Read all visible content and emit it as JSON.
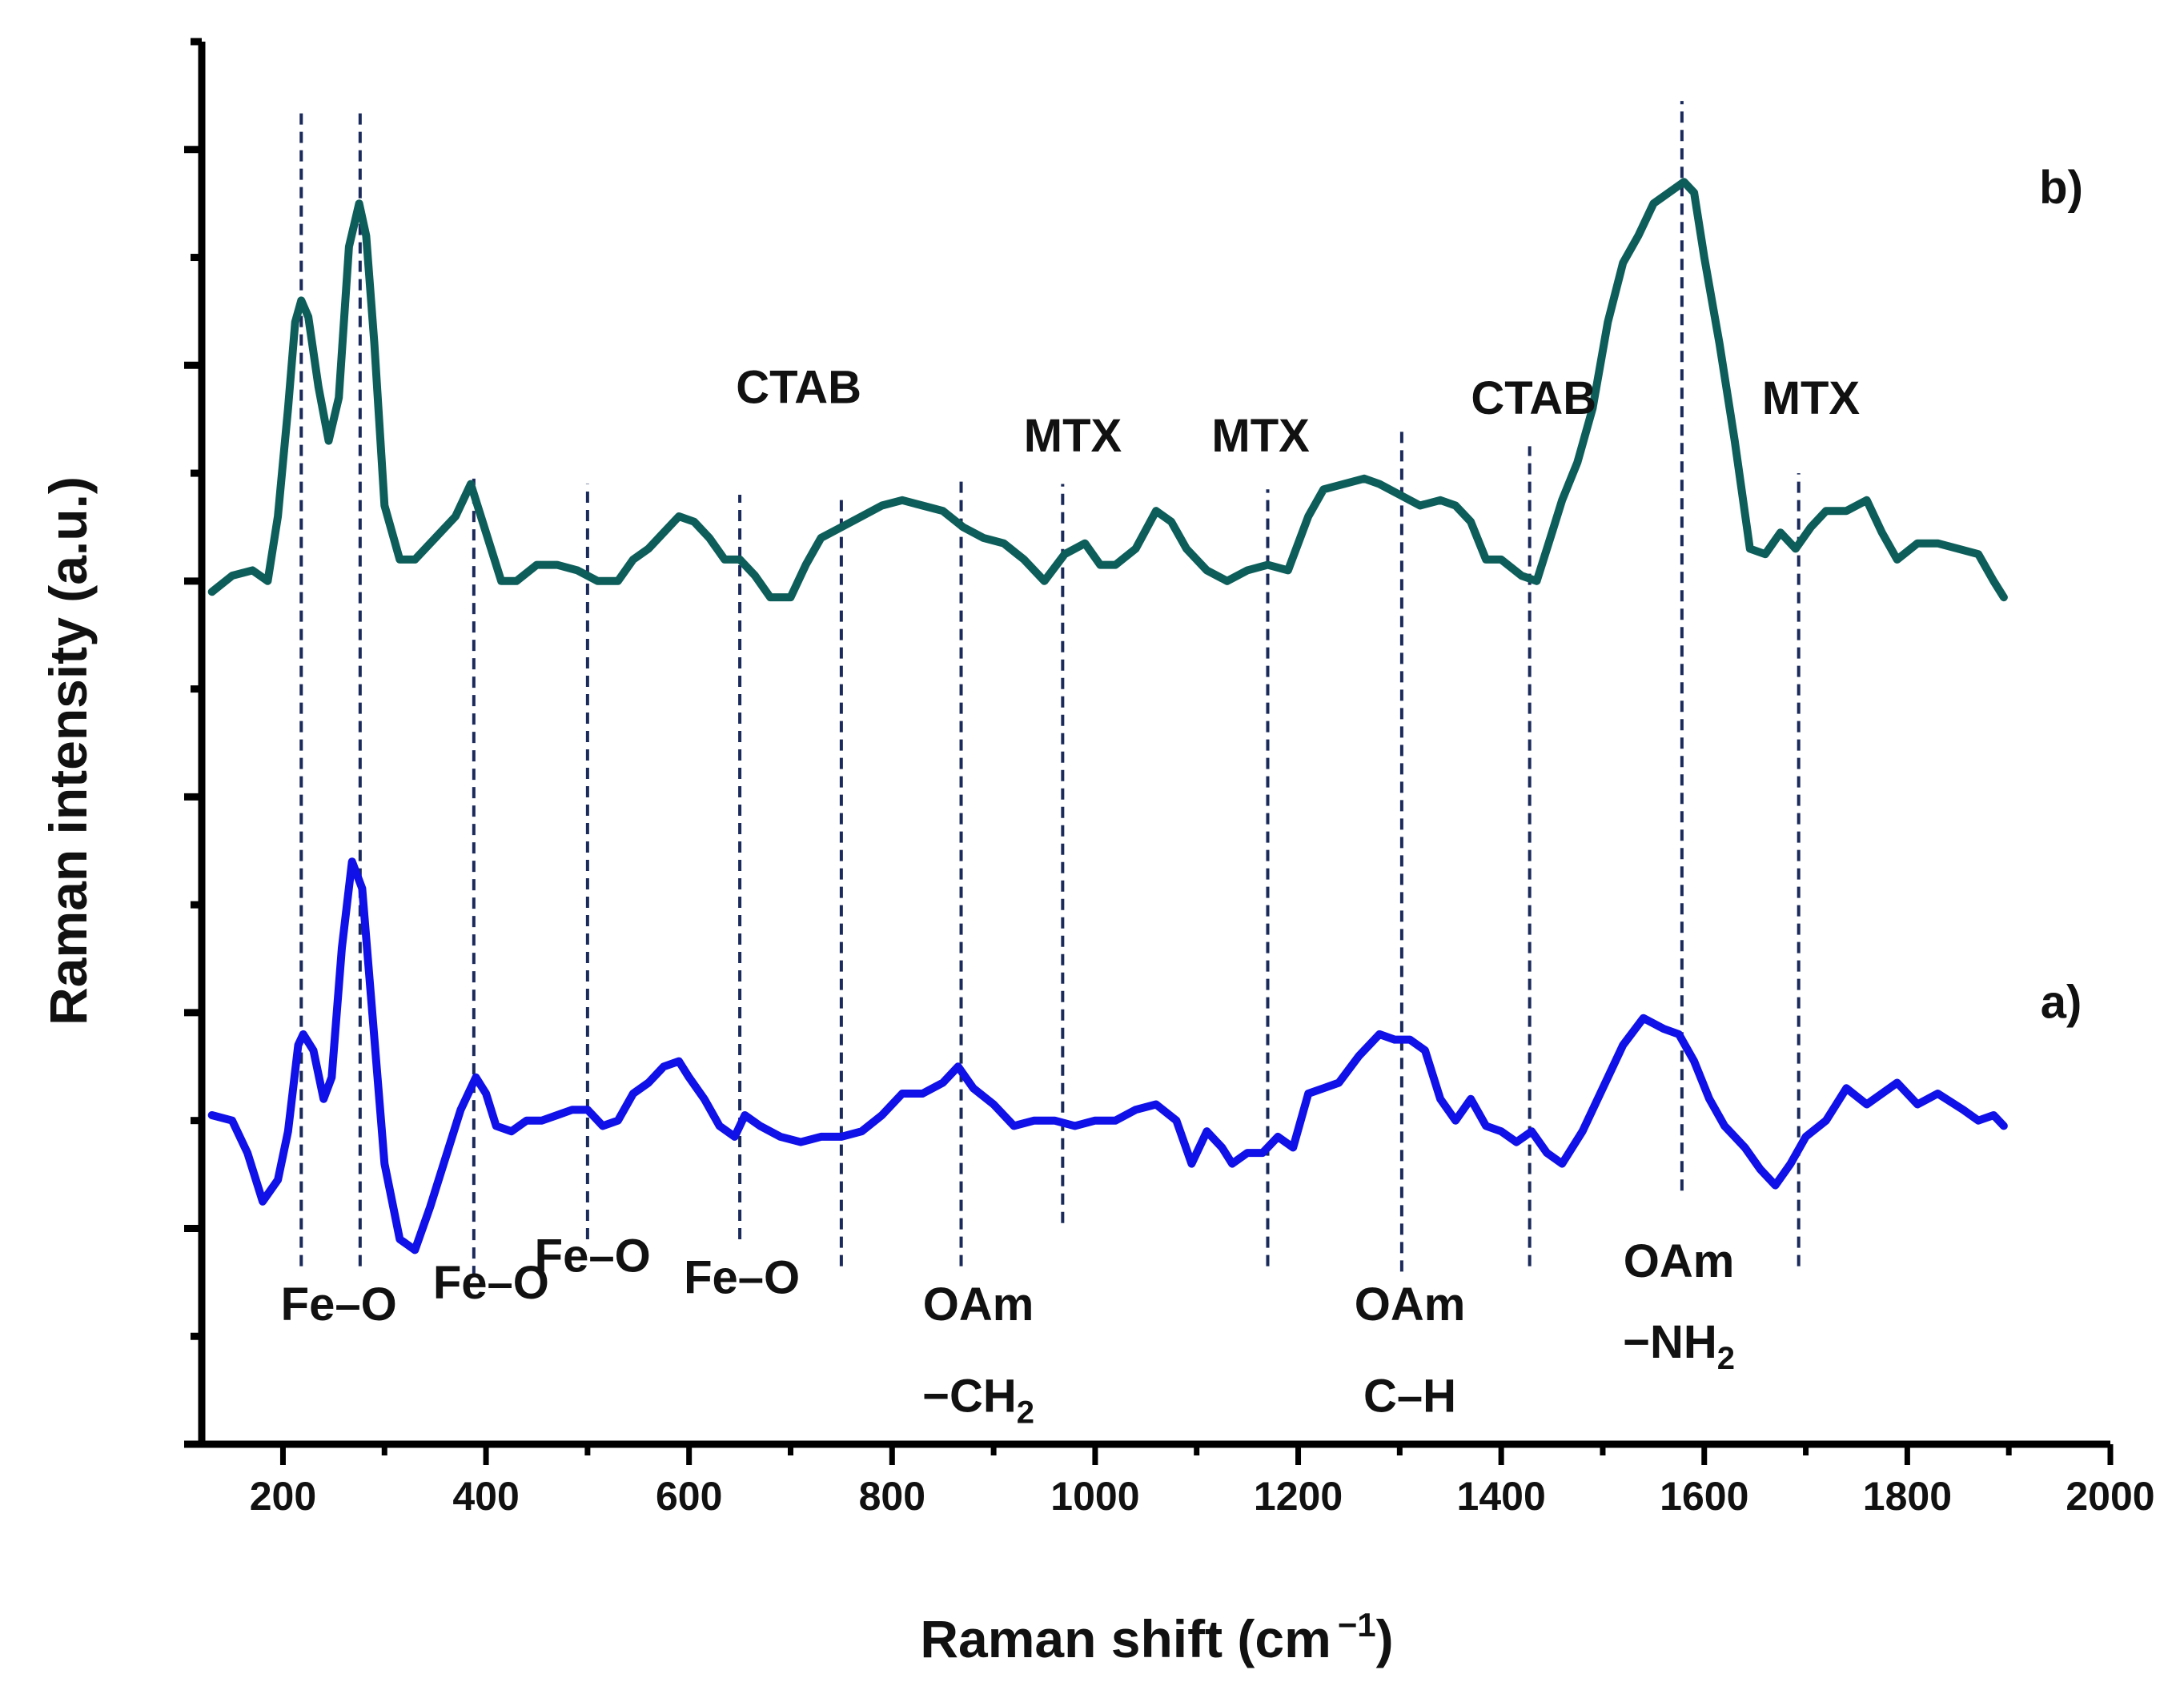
{
  "chart_data": {
    "type": "line",
    "title": "",
    "xlabel": "Raman shift (cm",
    "xlabel_sup": "−1",
    "xlabel_close": ")",
    "ylabel": "Raman intensity (a.u.)",
    "xlim": [
      120,
      2000
    ],
    "ylim": [
      0,
      13
    ],
    "x_ticks": [
      200,
      400,
      600,
      800,
      1000,
      1200,
      1400,
      1600,
      1800,
      2000
    ],
    "y_ticks_count": 13,
    "grid": false,
    "series": [
      {
        "name": "a)",
        "color": "#1010e8",
        "x": [
          130,
          150,
          165,
          180,
          195,
          205,
          215,
          220,
          230,
          240,
          248,
          258,
          268,
          278,
          288,
          300,
          315,
          330,
          345,
          360,
          375,
          390,
          400,
          410,
          425,
          440,
          455,
          470,
          485,
          500,
          515,
          530,
          545,
          560,
          575,
          590,
          600,
          615,
          630,
          645,
          655,
          670,
          690,
          710,
          730,
          750,
          770,
          790,
          810,
          830,
          850,
          865,
          880,
          900,
          920,
          940,
          960,
          980,
          1000,
          1020,
          1040,
          1060,
          1080,
          1095,
          1110,
          1125,
          1135,
          1150,
          1165,
          1180,
          1195,
          1210,
          1225,
          1240,
          1260,
          1280,
          1295,
          1310,
          1325,
          1340,
          1355,
          1370,
          1385,
          1400,
          1415,
          1430,
          1445,
          1460,
          1480,
          1500,
          1520,
          1540,
          1560,
          1575,
          1590,
          1605,
          1620,
          1640,
          1655,
          1670,
          1685,
          1700,
          1720,
          1740,
          1760,
          1790,
          1810,
          1830,
          1855,
          1870,
          1885,
          1895
        ],
        "y": [
          3.05,
          3.0,
          2.7,
          2.25,
          2.45,
          2.9,
          3.7,
          3.8,
          3.65,
          3.2,
          3.4,
          4.6,
          5.4,
          5.15,
          4.0,
          2.6,
          1.9,
          1.8,
          2.2,
          2.65,
          3.1,
          3.4,
          3.25,
          2.95,
          2.9,
          3.0,
          3.0,
          3.05,
          3.1,
          3.1,
          2.95,
          3.0,
          3.25,
          3.35,
          3.5,
          3.55,
          3.4,
          3.2,
          2.95,
          2.85,
          3.05,
          2.95,
          2.85,
          2.8,
          2.85,
          2.85,
          2.9,
          3.05,
          3.25,
          3.25,
          3.35,
          3.5,
          3.3,
          3.15,
          2.95,
          3.0,
          3.0,
          2.95,
          3.0,
          3.0,
          3.1,
          3.15,
          3.0,
          2.6,
          2.9,
          2.75,
          2.6,
          2.7,
          2.7,
          2.85,
          2.75,
          3.25,
          3.3,
          3.35,
          3.6,
          3.8,
          3.75,
          3.75,
          3.65,
          3.2,
          3.0,
          3.2,
          2.95,
          2.9,
          2.8,
          2.9,
          2.7,
          2.6,
          2.9,
          3.3,
          3.7,
          3.95,
          3.85,
          3.8,
          3.55,
          3.2,
          2.95,
          2.75,
          2.55,
          2.4,
          2.6,
          2.85,
          3.0,
          3.3,
          3.15,
          3.35,
          3.15,
          3.25,
          3.1,
          3.0,
          3.05,
          2.95
        ],
        "labels": []
      },
      {
        "name": "b)",
        "color": "#0d5e5a",
        "x": [
          130,
          150,
          170,
          185,
          195,
          205,
          212,
          218,
          225,
          235,
          245,
          255,
          265,
          275,
          282,
          290,
          300,
          315,
          330,
          350,
          370,
          385,
          395,
          405,
          415,
          430,
          450,
          470,
          490,
          510,
          530,
          545,
          560,
          575,
          590,
          605,
          620,
          635,
          650,
          665,
          680,
          700,
          715,
          730,
          750,
          770,
          790,
          810,
          830,
          850,
          870,
          890,
          910,
          930,
          950,
          970,
          990,
          1005,
          1020,
          1040,
          1060,
          1075,
          1090,
          1110,
          1130,
          1150,
          1170,
          1190,
          1210,
          1225,
          1245,
          1265,
          1280,
          1300,
          1320,
          1340,
          1355,
          1370,
          1385,
          1400,
          1420,
          1435,
          1450,
          1460,
          1475,
          1490,
          1505,
          1520,
          1535,
          1550,
          1565,
          1580,
          1590,
          1600,
          1615,
          1630,
          1645,
          1660,
          1675,
          1690,
          1705,
          1720,
          1740,
          1760,
          1775,
          1790,
          1810,
          1830,
          1850,
          1870,
          1885,
          1895
        ],
        "y": [
          7.9,
          8.05,
          8.1,
          8.0,
          8.6,
          9.6,
          10.4,
          10.6,
          10.45,
          9.8,
          9.3,
          9.7,
          11.1,
          11.5,
          11.2,
          10.2,
          8.7,
          8.2,
          8.2,
          8.4,
          8.6,
          8.9,
          8.6,
          8.3,
          8.0,
          8.0,
          8.15,
          8.15,
          8.1,
          8.0,
          8.0,
          8.2,
          8.3,
          8.45,
          8.6,
          8.55,
          8.4,
          8.2,
          8.2,
          8.05,
          7.85,
          7.85,
          8.15,
          8.4,
          8.5,
          8.6,
          8.7,
          8.75,
          8.7,
          8.65,
          8.5,
          8.4,
          8.35,
          8.2,
          8.0,
          8.25,
          8.35,
          8.15,
          8.15,
          8.3,
          8.65,
          8.55,
          8.3,
          8.1,
          8.0,
          8.1,
          8.15,
          8.1,
          8.6,
          8.85,
          8.9,
          8.95,
          8.9,
          8.8,
          8.7,
          8.75,
          8.7,
          8.55,
          8.2,
          8.2,
          8.05,
          8.0,
          8.45,
          8.75,
          9.1,
          9.6,
          10.4,
          10.95,
          11.2,
          11.5,
          11.6,
          11.7,
          11.6,
          11.0,
          10.2,
          9.3,
          8.3,
          8.25,
          8.45,
          8.3,
          8.5,
          8.65,
          8.65,
          8.75,
          8.45,
          8.2,
          8.35,
          8.35,
          8.3,
          8.25,
          8.0,
          7.85
        ],
        "labels": []
      }
    ],
    "series_labels": [
      {
        "text": "a)",
        "x": 1920,
        "y": 3.95
      },
      {
        "text": "b)",
        "x": 1920,
        "y": 11.5
      }
    ],
    "reference_lines": [
      {
        "x": 218,
        "y_from": 1.65,
        "y_to": 12.4
      },
      {
        "x": 276,
        "y_from": 1.65,
        "y_to": 12.4
      },
      {
        "x": 388,
        "y_from": 1.55,
        "y_to": 8.95
      },
      {
        "x": 500,
        "y_from": 1.9,
        "y_to": 8.9
      },
      {
        "x": 650,
        "y_from": 1.9,
        "y_to": 8.8
      },
      {
        "x": 750,
        "y_from": 1.65,
        "y_to": 8.8
      },
      {
        "x": 868,
        "y_from": 1.65,
        "y_to": 8.95
      },
      {
        "x": 968,
        "y_from": 2.05,
        "y_to": 8.9
      },
      {
        "x": 1170,
        "y_from": 1.65,
        "y_to": 8.85
      },
      {
        "x": 1302,
        "y_from": 1.6,
        "y_to": 9.45
      },
      {
        "x": 1428,
        "y_from": 1.65,
        "y_to": 9.25
      },
      {
        "x": 1578,
        "y_from": 2.35,
        "y_to": 12.45
      },
      {
        "x": 1693,
        "y_from": 1.65,
        "y_to": 9.0
      }
    ],
    "annotations": [
      {
        "text": "Fe–O",
        "x": 255,
        "y": 1.15
      },
      {
        "text": "Fe–O",
        "x": 405,
        "y": 1.35
      },
      {
        "text": "Fe–O",
        "x": 505,
        "y": 1.6
      },
      {
        "text": "Fe–O",
        "x": 652,
        "y": 1.4
      },
      {
        "text": "CTAB",
        "x": 708,
        "y": 9.65
      },
      {
        "text": "MTX",
        "x": 978,
        "y": 9.2
      },
      {
        "text": "MTX",
        "x": 1163,
        "y": 9.2
      },
      {
        "text": "CTAB",
        "x": 1432,
        "y": 9.55
      },
      {
        "text": "MTX",
        "x": 1705,
        "y": 9.55
      }
    ],
    "multiline_annotations": [
      {
        "line1": "OAm",
        "line2": "−CH",
        "line2_sub": "2",
        "x": 885,
        "y1": 1.15,
        "y2": 0.3
      },
      {
        "line1": "OAm",
        "line2": "C–H",
        "line2_sub": "",
        "x": 1310,
        "y1": 1.15,
        "y2": 0.3
      },
      {
        "line1": "OAm",
        "line2": "−NH",
        "line2_sub": "2",
        "x": 1575,
        "y1": 1.55,
        "y2": 0.8
      }
    ]
  }
}
